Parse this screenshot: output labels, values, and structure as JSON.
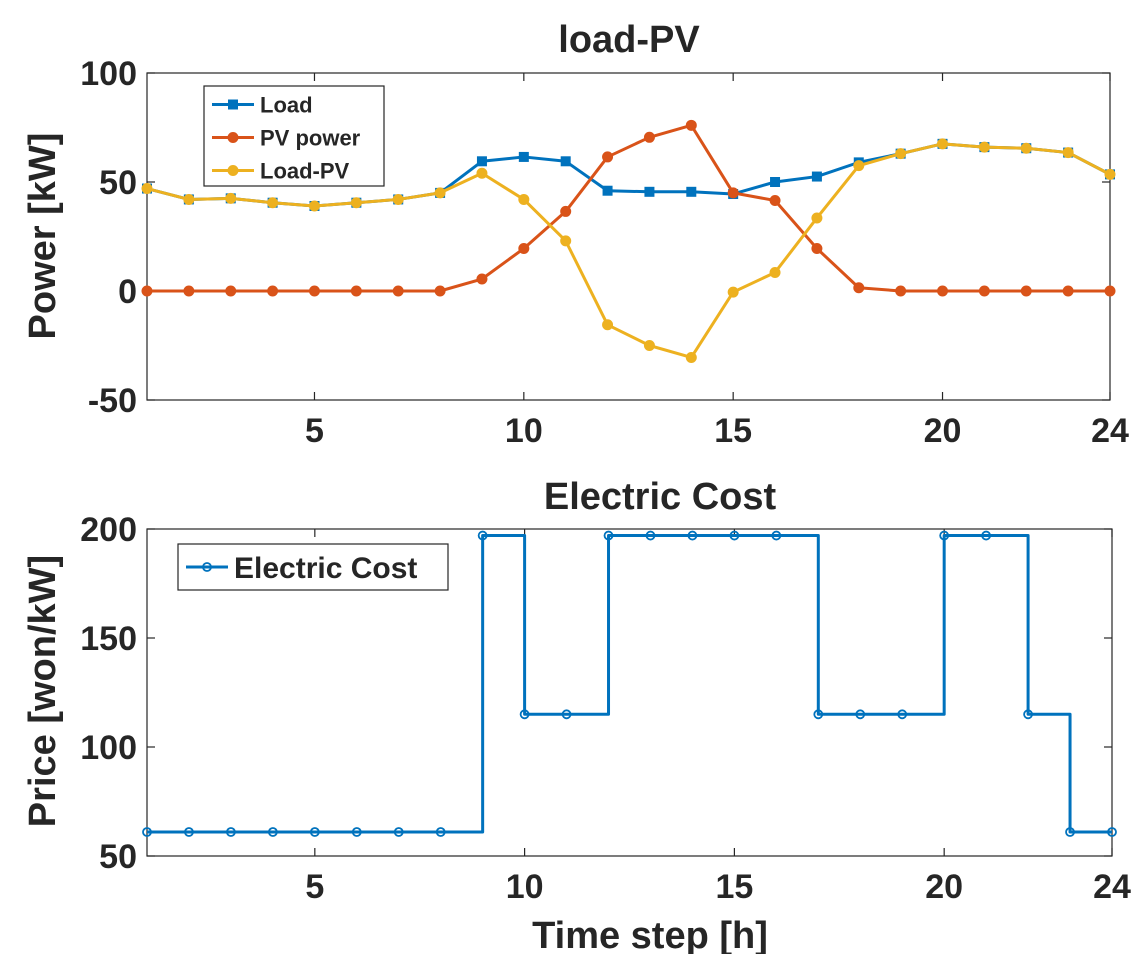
{
  "chart_data": [
    {
      "type": "line",
      "title": "load-PV",
      "xlabel": "",
      "ylabel": "Power [kW]",
      "xlim": [
        1,
        24
      ],
      "ylim": [
        -50,
        100
      ],
      "xticks": [
        "5",
        "10",
        "15",
        "20",
        "24"
      ],
      "yticks": [
        "-50",
        "0",
        "50",
        "100"
      ],
      "grid": false,
      "legend_position": "top-left",
      "x": [
        1,
        2,
        3,
        4,
        5,
        6,
        7,
        8,
        9,
        10,
        11,
        12,
        13,
        14,
        15,
        16,
        17,
        18,
        19,
        20,
        21,
        22,
        23,
        24
      ],
      "series": [
        {
          "name": "Load",
          "color": "#0072BD",
          "marker": "square",
          "values": [
            47,
            42,
            42.5,
            40.5,
            39,
            40.5,
            42,
            45,
            59.5,
            61.5,
            59.5,
            46,
            45.5,
            45.5,
            44.5,
            50,
            52.5,
            59,
            63,
            67.5,
            66,
            65.5,
            63.5,
            53.5
          ]
        },
        {
          "name": "PV power",
          "color": "#D95319",
          "marker": "circle",
          "values": [
            0,
            0,
            0,
            0,
            0,
            0,
            0,
            0,
            5.5,
            19.5,
            36.5,
            61.5,
            70.5,
            76,
            45,
            41.5,
            19.5,
            1.5,
            0,
            0,
            0,
            0,
            0,
            0
          ]
        },
        {
          "name": "Load-PV",
          "color": "#EDB120",
          "marker": "circle",
          "values": [
            47,
            42,
            42.5,
            40.5,
            39,
            40.5,
            42,
            45,
            54,
            42,
            23,
            -15.5,
            -25,
            -30.5,
            -0.5,
            8.5,
            33.5,
            57.5,
            63,
            67.5,
            66,
            65.5,
            63.5,
            53.5
          ]
        }
      ]
    },
    {
      "type": "line",
      "title": "Electric Cost",
      "xlabel": "Time step [h]",
      "ylabel": "Price [won/kW]",
      "xlim": [
        1,
        24
      ],
      "ylim": [
        50,
        200
      ],
      "xticks": [
        "5",
        "10",
        "15",
        "20",
        "24"
      ],
      "yticks": [
        "50",
        "100",
        "150",
        "200"
      ],
      "grid": false,
      "legend_position": "top-left",
      "step": true,
      "x": [
        1,
        2,
        3,
        4,
        5,
        6,
        7,
        8,
        9,
        10,
        11,
        12,
        13,
        14,
        15,
        16,
        17,
        18,
        19,
        20,
        21,
        22,
        23,
        24
      ],
      "series": [
        {
          "name": "Electric Cost",
          "color": "#0072BD",
          "marker": "open-circle",
          "values": [
            61,
            61,
            61,
            61,
            61,
            61,
            61,
            61,
            197,
            115,
            115,
            197,
            197,
            197,
            197,
            197,
            115,
            115,
            115,
            197,
            197,
            115,
            61,
            61
          ]
        }
      ]
    }
  ]
}
